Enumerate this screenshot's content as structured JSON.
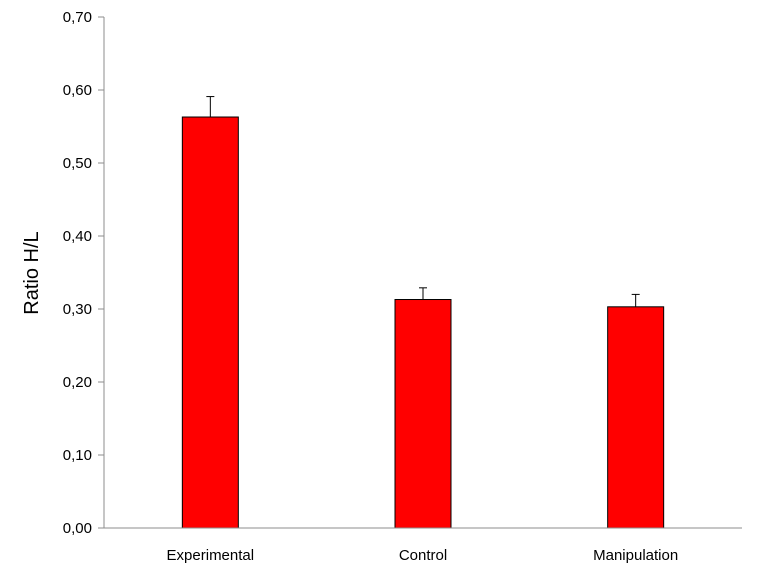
{
  "chart_data": {
    "type": "bar",
    "title": "",
    "xlabel": "",
    "ylabel": "Ratio H/L",
    "categories": [
      "Experimental",
      "Control",
      "Manipulation"
    ],
    "values": [
      0.563,
      0.313,
      0.303
    ],
    "error_bars": [
      0.028,
      0.016,
      0.017
    ],
    "ylim": [
      0.0,
      0.7
    ],
    "yticks": [
      0.0,
      0.1,
      0.2,
      0.3,
      0.4,
      0.5,
      0.6,
      0.7
    ],
    "ytick_labels": [
      "0,00",
      "0,10",
      "0,20",
      "0,30",
      "0,40",
      "0,50",
      "0,60",
      "0,70"
    ],
    "grid": false,
    "legend": "none",
    "colors": {
      "bar_fill": "#ff0000",
      "bar_stroke": "#000000",
      "axis": "#8c8c8c"
    }
  }
}
